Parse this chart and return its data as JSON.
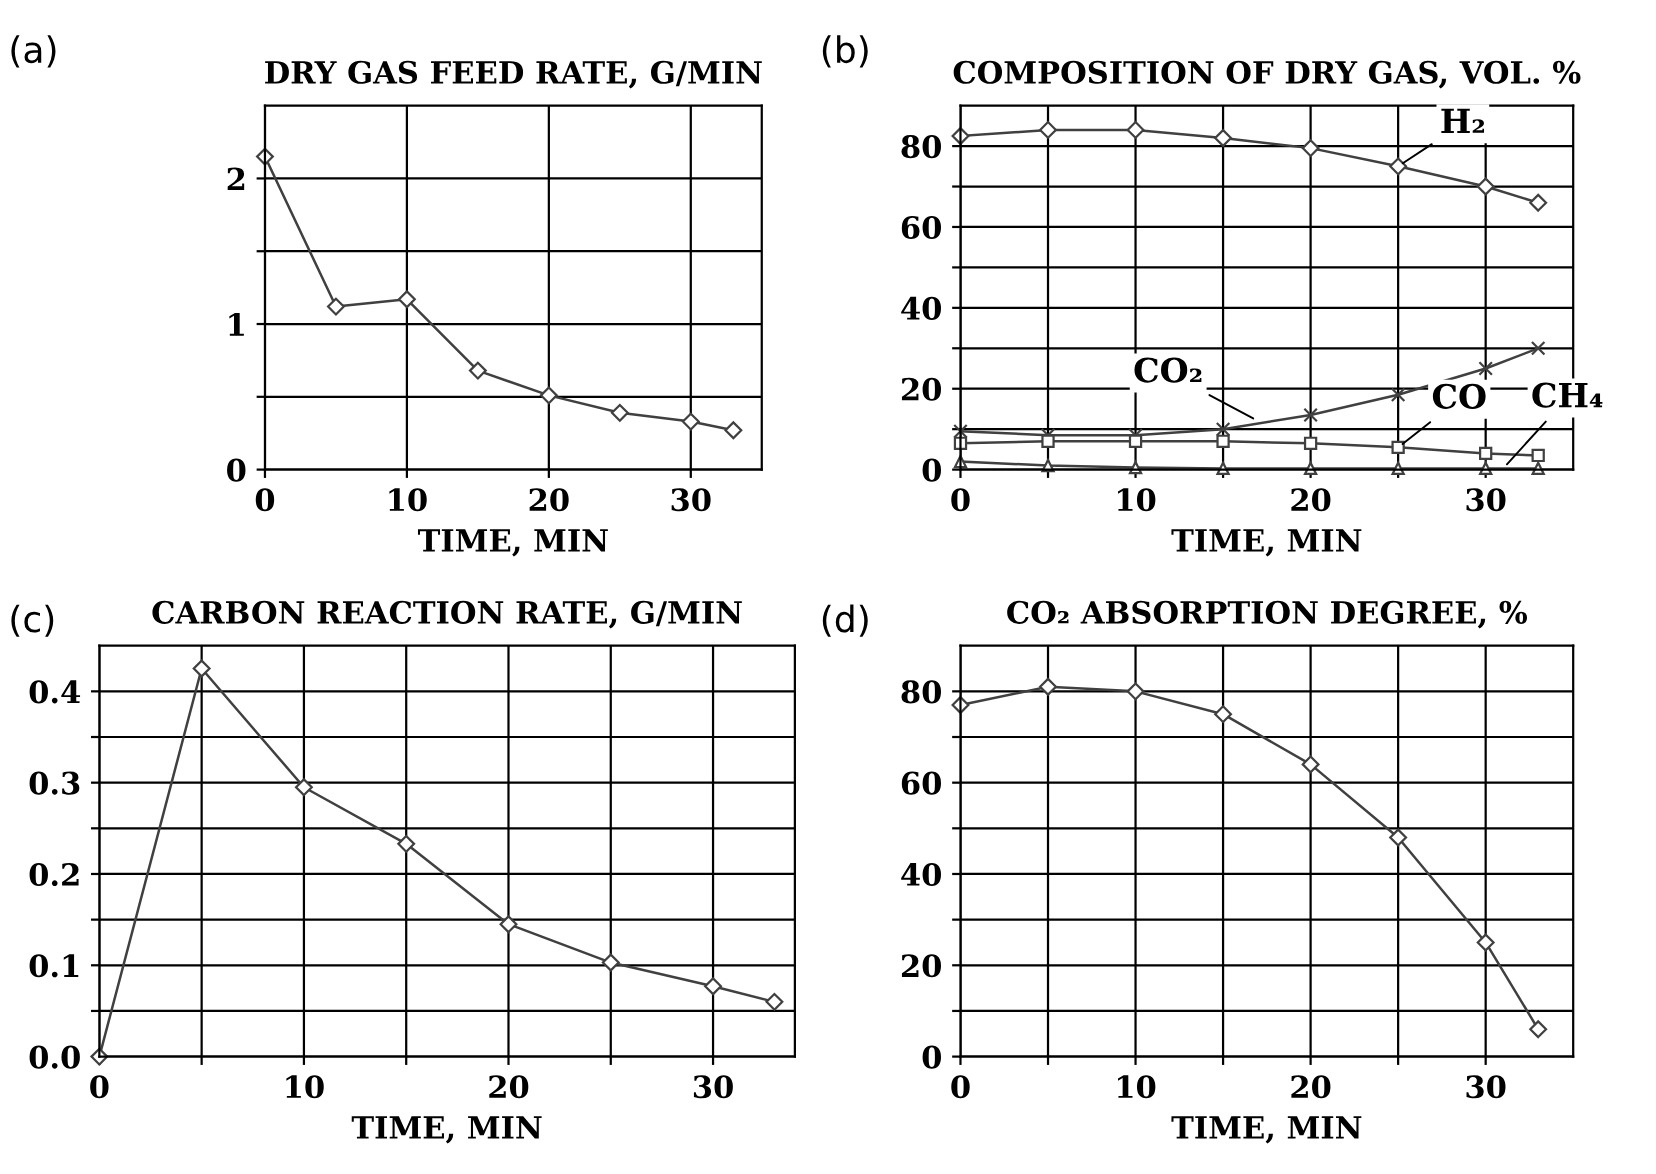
{
  "chart_data": [
    {
      "type": "line",
      "title": "DRY GAS FEED RATE, G/MIN",
      "xlabel": "TIME, MIN",
      "annotations": [
        "(a)"
      ],
      "x": [
        0,
        5,
        10,
        15,
        20,
        25,
        30,
        33
      ],
      "series": [
        {
          "color": "#404040",
          "values": [
            2.15,
            1.12,
            1.17,
            0.68,
            0.51,
            0.39,
            0.33,
            0.27
          ],
          "marker": "diamond"
        }
      ],
      "xlim": [
        0,
        35
      ],
      "ylim": [
        0,
        2.5
      ],
      "xticks": [
        0,
        10,
        20,
        30
      ],
      "yticks": [
        0,
        {
          "value": 0.5,
          "label": null
        },
        1,
        {
          "value": 1.5,
          "label": null
        },
        2
      ],
      "grid": true
    },
    {
      "type": "line",
      "title": "COMPOSITION OF DRY GAS, VOL. %",
      "xlabel": "TIME, MIN",
      "x": [
        0,
        5,
        10,
        15,
        20,
        25,
        30,
        33
      ],
      "annotations": [
        "(b)",
        {
          "text": "H₂",
          "x": 25,
          "y": 75
        },
        {
          "text": "CO₂",
          "x": 17,
          "y": 12
        },
        {
          "text": "CO",
          "x": 25,
          "y": 5.5
        },
        {
          "text": "CH₄",
          "x": 31,
          "y": 0.3
        }
      ],
      "series": [
        {
          "color": "#404040",
          "values": [
            82.5,
            84,
            84,
            82,
            79.5,
            75,
            70,
            66
          ],
          "marker": "diamond"
        },
        {
          "color": "#404040",
          "values": [
            9.5,
            8.5,
            8.5,
            10,
            13.5,
            18.5,
            25,
            30
          ],
          "marker": "cross"
        },
        {
          "color": "#404040",
          "values": [
            6.5,
            7,
            7,
            7,
            6.5,
            5.5,
            4,
            3.5
          ],
          "marker": "square"
        },
        {
          "color": "#404040",
          "values": [
            2,
            1,
            0.5,
            0.3,
            0.3,
            0.3,
            0.3,
            0.3
          ],
          "marker": "triangle"
        }
      ],
      "xlim": [
        0,
        35
      ],
      "ylim": [
        0,
        90
      ],
      "xticks": [
        0,
        {
          "value": 5,
          "label": null
        },
        10,
        {
          "value": 15,
          "label": null
        },
        20,
        {
          "value": 25,
          "label": null
        },
        30
      ],
      "yticks": [
        0,
        {
          "value": 10,
          "label": null
        },
        20,
        {
          "value": 30,
          "label": null
        },
        40,
        {
          "value": 50,
          "label": null
        },
        60,
        {
          "value": 70,
          "label": null
        },
        80
      ],
      "grid": true
    },
    {
      "type": "line",
      "title": "CARBON REACTION RATE, G/MIN",
      "xlabel": "TIME, MIN",
      "annotations": [
        "(c)"
      ],
      "x": [
        0,
        5,
        10,
        15,
        20,
        25,
        30,
        33
      ],
      "series": [
        {
          "color": "#404040",
          "values": [
            0,
            0.425,
            0.295,
            0.233,
            0.145,
            0.103,
            0.077,
            0.06
          ],
          "marker": "diamond"
        }
      ],
      "xlim": [
        0,
        34
      ],
      "ylim": [
        0,
        0.45
      ],
      "xticks": [
        0,
        {
          "value": 5,
          "label": null
        },
        10,
        {
          "value": 15,
          "label": null
        },
        20,
        {
          "value": 25,
          "label": null
        },
        30
      ],
      "yticks": [
        {
          "value": 0,
          "label": "0.0"
        },
        {
          "value": 0.05,
          "label": null
        },
        0.1,
        {
          "value": 0.15,
          "label": null
        },
        0.2,
        {
          "value": 0.25,
          "label": null
        },
        0.3,
        {
          "value": 0.35,
          "label": null
        },
        0.4
      ],
      "grid": true
    },
    {
      "type": "line",
      "title": "CO₂ ABSORPTION DEGREE, %",
      "xlabel": "TIME, MIN",
      "annotations": [
        "(d)"
      ],
      "x": [
        0,
        5,
        10,
        15,
        20,
        25,
        30,
        33
      ],
      "series": [
        {
          "color": "#404040",
          "values": [
            77,
            81,
            80,
            75,
            64,
            48,
            25,
            6
          ],
          "marker": "diamond"
        }
      ],
      "xlim": [
        0,
        35
      ],
      "ylim": [
        0,
        90
      ],
      "xticks": [
        0,
        {
          "value": 5,
          "label": null
        },
        10,
        {
          "value": 15,
          "label": null
        },
        20,
        {
          "value": 25,
          "label": null
        },
        30
      ],
      "yticks": [
        0,
        {
          "value": 10,
          "label": null
        },
        20,
        {
          "value": 30,
          "label": null
        },
        40,
        {
          "value": 50,
          "label": null
        },
        60,
        {
          "value": 70,
          "label": null
        },
        80
      ],
      "grid": true
    }
  ]
}
